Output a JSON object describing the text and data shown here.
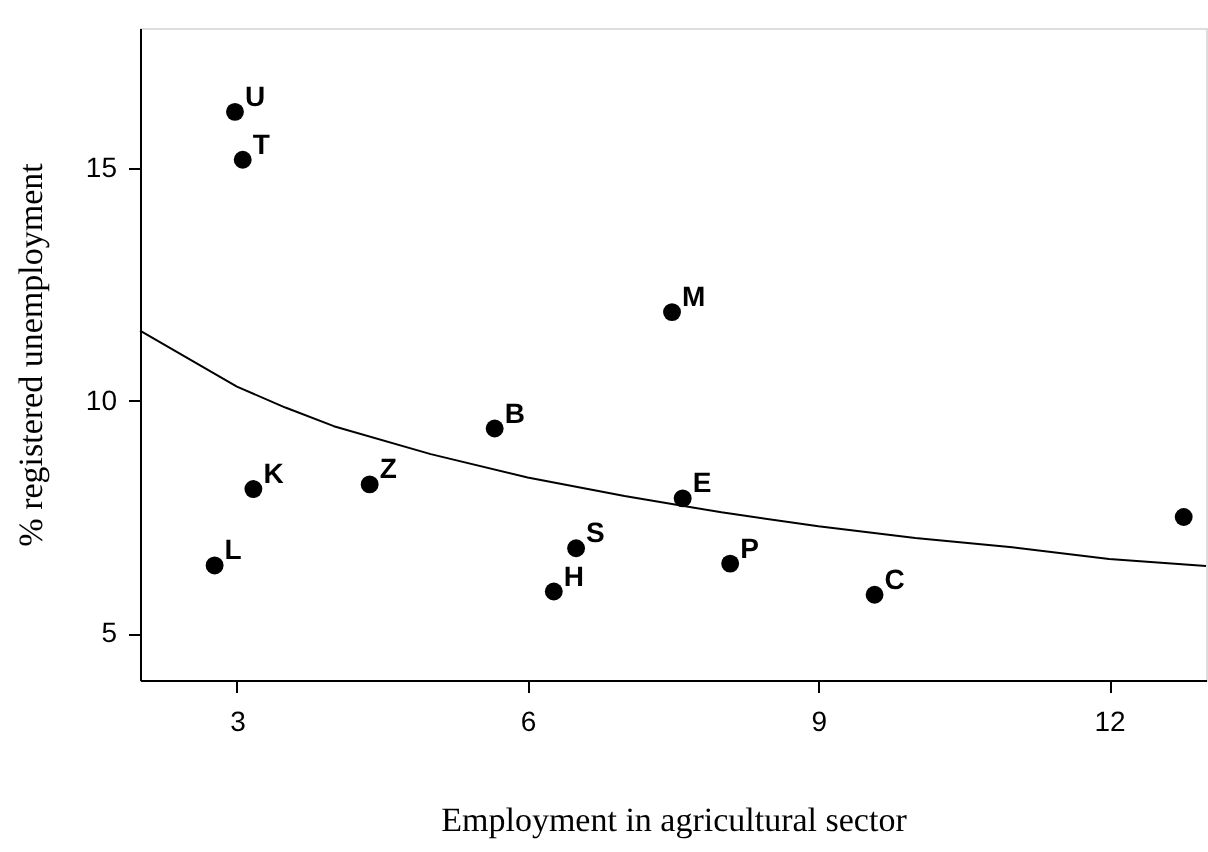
{
  "chart_data": {
    "type": "scatter",
    "xlabel": "Employment in agricultural sector",
    "ylabel": "% registered unemployment",
    "xlim": [
      2,
      13
    ],
    "xticks": [
      3,
      6,
      9,
      12
    ],
    "ylim": [
      4,
      18
    ],
    "yticks": [
      5,
      10,
      15
    ],
    "grid": false,
    "marker": "circle",
    "series": [
      {
        "color": "#000000",
        "x": [
          2.98,
          3.06,
          7.49,
          5.66,
          3.17,
          4.37,
          2.77,
          6.5,
          6.27,
          7.6,
          8.09,
          9.58,
          12.77
        ],
        "values": [
          16.2,
          15.17,
          11.9,
          9.4,
          8.1,
          8.2,
          6.46,
          6.83,
          5.9,
          7.9,
          6.5,
          5.83,
          7.5
        ]
      },
      {
        "type": "line",
        "color": "#000000",
        "marker": "none",
        "x": [
          2,
          2.5,
          3,
          3.5,
          4,
          5,
          6,
          7,
          8,
          9,
          10,
          11,
          12,
          13
        ],
        "values": [
          11.5,
          10.9,
          10.3,
          9.85,
          9.45,
          8.85,
          8.35,
          7.95,
          7.6,
          7.3,
          7.05,
          6.85,
          6.6,
          6.45
        ]
      }
    ],
    "annotations": [
      {
        "text": "U",
        "x": 2.98,
        "y": 16.2
      },
      {
        "text": "T",
        "x": 3.06,
        "y": 15.17
      },
      {
        "text": "M",
        "x": 7.49,
        "y": 11.9
      },
      {
        "text": "B",
        "x": 5.66,
        "y": 9.4
      },
      {
        "text": "K",
        "x": 3.17,
        "y": 8.1
      },
      {
        "text": "Z",
        "x": 4.37,
        "y": 8.2
      },
      {
        "text": "L",
        "x": 2.77,
        "y": 6.46
      },
      {
        "text": "S",
        "x": 6.5,
        "y": 6.83
      },
      {
        "text": "H",
        "x": 6.27,
        "y": 5.9
      },
      {
        "text": "E",
        "x": 7.6,
        "y": 7.9
      },
      {
        "text": "P",
        "x": 8.09,
        "y": 6.5
      },
      {
        "text": "C",
        "x": 9.58,
        "y": 5.83
      }
    ]
  }
}
